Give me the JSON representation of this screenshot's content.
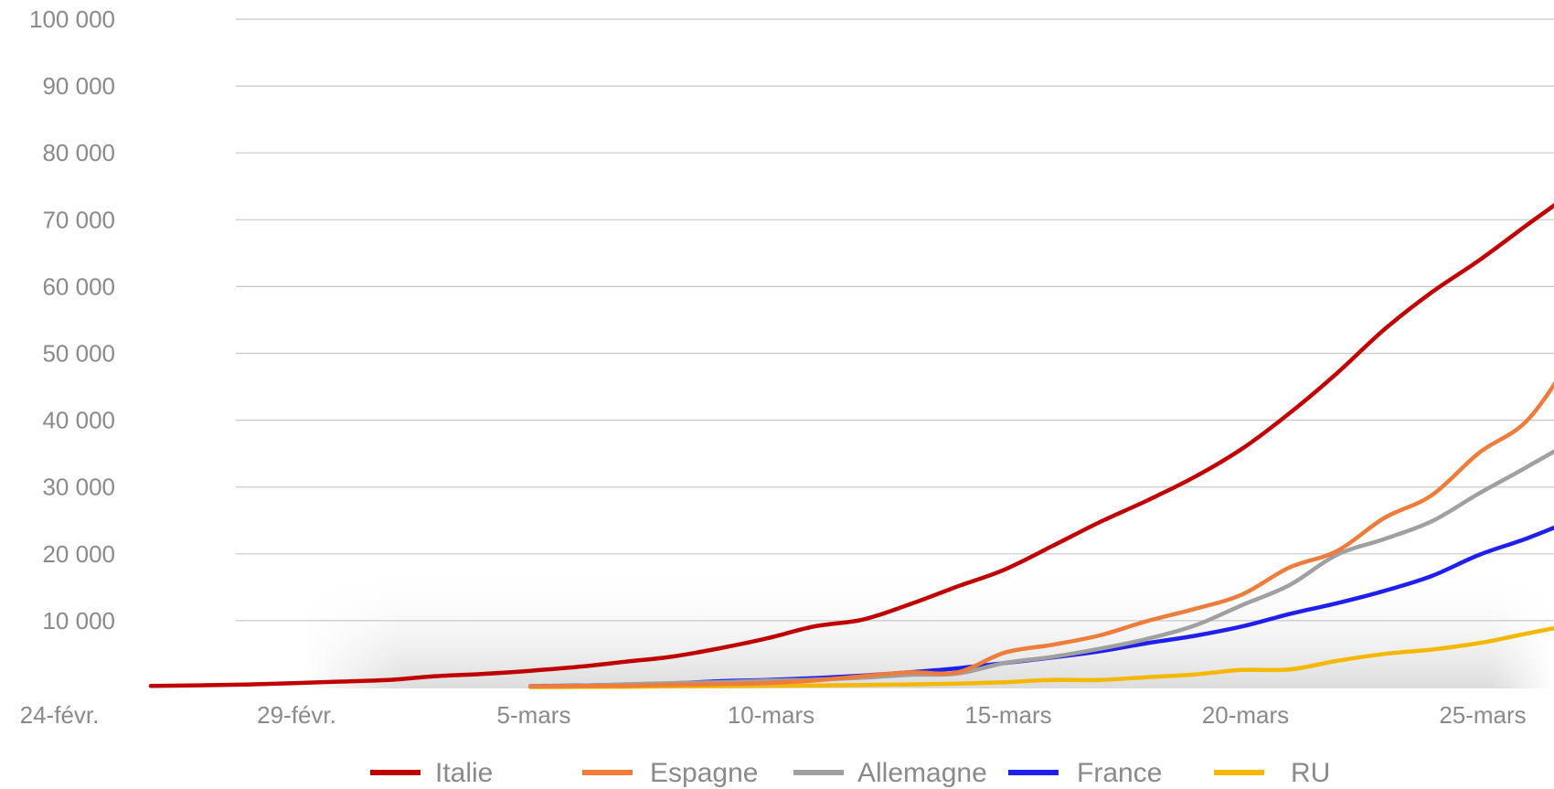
{
  "chart_data": {
    "type": "line",
    "title": "",
    "xlabel": "",
    "ylabel": "",
    "x_axis": {
      "start_date": "2020-02-24",
      "end_date": "2020-03-28",
      "tick_dates": [
        "2020-02-24",
        "2020-02-29",
        "2020-03-05",
        "2020-03-10",
        "2020-03-15",
        "2020-03-20",
        "2020-03-25"
      ],
      "tick_labels": [
        "24-févr.",
        "29-févr.",
        "5-mars",
        "10-mars",
        "15-mars",
        "20-mars",
        "25-mars"
      ]
    },
    "y_axis": {
      "range": [
        0,
        100000
      ],
      "ticks": [
        10000,
        20000,
        30000,
        40000,
        50000,
        60000,
        70000,
        80000,
        90000,
        100000
      ],
      "tick_labels": [
        "10 000",
        "20 000",
        "30 000",
        "40 000",
        "50 000",
        "60 000",
        "70 000",
        "80 000",
        "90 000",
        "100 000"
      ]
    },
    "grid": true,
    "legend_position": "bottom",
    "series": [
      {
        "name": "Italie",
        "color": "#c00000",
        "points": [
          [
            "2020-02-24",
            229
          ],
          [
            "2020-02-25",
            322
          ],
          [
            "2020-02-26",
            453
          ],
          [
            "2020-02-27",
            655
          ],
          [
            "2020-02-28",
            888
          ],
          [
            "2020-02-29",
            1128
          ],
          [
            "2020-03-01",
            1694
          ],
          [
            "2020-03-02",
            2036
          ],
          [
            "2020-03-03",
            2502
          ],
          [
            "2020-03-04",
            3089
          ],
          [
            "2020-03-05",
            3858
          ],
          [
            "2020-03-06",
            4636
          ],
          [
            "2020-03-07",
            5883
          ],
          [
            "2020-03-08",
            7375
          ],
          [
            "2020-03-09",
            9172
          ],
          [
            "2020-03-10",
            10149
          ],
          [
            "2020-03-11",
            12462
          ],
          [
            "2020-03-12",
            15113
          ],
          [
            "2020-03-13",
            17660
          ],
          [
            "2020-03-14",
            21157
          ],
          [
            "2020-03-15",
            24747
          ],
          [
            "2020-03-16",
            27980
          ],
          [
            "2020-03-17",
            31506
          ],
          [
            "2020-03-18",
            35713
          ],
          [
            "2020-03-19",
            41035
          ],
          [
            "2020-03-20",
            47021
          ],
          [
            "2020-03-21",
            53578
          ],
          [
            "2020-03-22",
            59138
          ],
          [
            "2020-03-23",
            63927
          ],
          [
            "2020-03-24",
            69176
          ],
          [
            "2020-03-25",
            74386
          ],
          [
            "2020-03-26",
            80589
          ],
          [
            "2020-03-27",
            86498
          ]
        ]
      },
      {
        "name": "Espagne",
        "color": "#ee7d3b",
        "points": [
          [
            "2020-03-03",
            165
          ],
          [
            "2020-03-04",
            222
          ],
          [
            "2020-03-05",
            259
          ],
          [
            "2020-03-06",
            400
          ],
          [
            "2020-03-07",
            500
          ],
          [
            "2020-03-08",
            673
          ],
          [
            "2020-03-09",
            1073
          ],
          [
            "2020-03-10",
            1695
          ],
          [
            "2020-03-11",
            2277
          ],
          [
            "2020-03-12",
            2277
          ],
          [
            "2020-03-13",
            5232
          ],
          [
            "2020-03-14",
            6391
          ],
          [
            "2020-03-15",
            7798
          ],
          [
            "2020-03-16",
            9942
          ],
          [
            "2020-03-17",
            11748
          ],
          [
            "2020-03-18",
            13910
          ],
          [
            "2020-03-19",
            17963
          ],
          [
            "2020-03-20",
            20410
          ],
          [
            "2020-03-21",
            25374
          ],
          [
            "2020-03-22",
            28768
          ],
          [
            "2020-03-23",
            35136
          ],
          [
            "2020-03-24",
            39885
          ],
          [
            "2020-03-25",
            49515
          ],
          [
            "2020-03-26",
            57786
          ],
          [
            "2020-03-27",
            65719
          ]
        ]
      },
      {
        "name": "Allemagne",
        "color": "#a0a0a0",
        "points": [
          [
            "2020-03-03",
            196
          ],
          [
            "2020-03-04",
            262
          ],
          [
            "2020-03-05",
            482
          ],
          [
            "2020-03-06",
            670
          ],
          [
            "2020-03-07",
            799
          ],
          [
            "2020-03-08",
            1040
          ],
          [
            "2020-03-09",
            1176
          ],
          [
            "2020-03-10",
            1457
          ],
          [
            "2020-03-11",
            1908
          ],
          [
            "2020-03-12",
            2078
          ],
          [
            "2020-03-13",
            3675
          ],
          [
            "2020-03-14",
            4585
          ],
          [
            "2020-03-15",
            5795
          ],
          [
            "2020-03-16",
            7272
          ],
          [
            "2020-03-17",
            9257
          ],
          [
            "2020-03-18",
            12327
          ],
          [
            "2020-03-19",
            15320
          ],
          [
            "2020-03-20",
            19848
          ],
          [
            "2020-03-21",
            22213
          ],
          [
            "2020-03-22",
            24873
          ],
          [
            "2020-03-23",
            29056
          ],
          [
            "2020-03-24",
            32986
          ],
          [
            "2020-03-25",
            37323
          ],
          [
            "2020-03-26",
            43938
          ],
          [
            "2020-03-27",
            50871
          ]
        ]
      },
      {
        "name": "France",
        "color": "#2020ee",
        "points": [
          [
            "2020-03-03",
            212
          ],
          [
            "2020-03-04",
            285
          ],
          [
            "2020-03-05",
            423
          ],
          [
            "2020-03-06",
            613
          ],
          [
            "2020-03-07",
            949
          ],
          [
            "2020-03-08",
            1126
          ],
          [
            "2020-03-09",
            1412
          ],
          [
            "2020-03-10",
            1784
          ],
          [
            "2020-03-11",
            2281
          ],
          [
            "2020-03-12",
            2876
          ],
          [
            "2020-03-13",
            3661
          ],
          [
            "2020-03-14",
            4499
          ],
          [
            "2020-03-15",
            5423
          ],
          [
            "2020-03-16",
            6633
          ],
          [
            "2020-03-17",
            7730
          ],
          [
            "2020-03-18",
            9134
          ],
          [
            "2020-03-19",
            10995
          ],
          [
            "2020-03-20",
            12612
          ],
          [
            "2020-03-21",
            14459
          ],
          [
            "2020-03-22",
            16689
          ],
          [
            "2020-03-23",
            19856
          ],
          [
            "2020-03-24",
            22302
          ],
          [
            "2020-03-25",
            25233
          ],
          [
            "2020-03-26",
            29155
          ],
          [
            "2020-03-27",
            32964
          ]
        ]
      },
      {
        "name": "RU",
        "color": "#f5b800",
        "points": [
          [
            "2020-03-03",
            51
          ],
          [
            "2020-03-04",
            87
          ],
          [
            "2020-03-05",
            116
          ],
          [
            "2020-03-06",
            164
          ],
          [
            "2020-03-07",
            207
          ],
          [
            "2020-03-08",
            273
          ],
          [
            "2020-03-09",
            321
          ],
          [
            "2020-03-10",
            383
          ],
          [
            "2020-03-11",
            460
          ],
          [
            "2020-03-12",
            590
          ],
          [
            "2020-03-13",
            798
          ],
          [
            "2020-03-14",
            1140
          ],
          [
            "2020-03-15",
            1140
          ],
          [
            "2020-03-16",
            1543
          ],
          [
            "2020-03-17",
            1950
          ],
          [
            "2020-03-18",
            2626
          ],
          [
            "2020-03-19",
            2689
          ],
          [
            "2020-03-20",
            3983
          ],
          [
            "2020-03-21",
            5018
          ],
          [
            "2020-03-22",
            5683
          ],
          [
            "2020-03-23",
            6650
          ],
          [
            "2020-03-24",
            8077
          ],
          [
            "2020-03-25",
            9529
          ],
          [
            "2020-03-26",
            11658
          ],
          [
            "2020-03-27",
            14543
          ]
        ]
      }
    ]
  }
}
